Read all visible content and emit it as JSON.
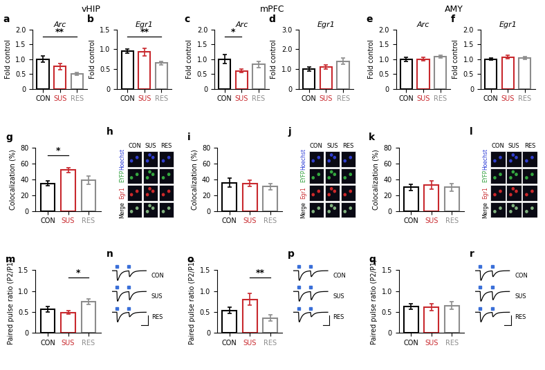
{
  "regions": [
    "vHIP",
    "mPFC",
    "AMY"
  ],
  "chart_data": [
    {
      "type": "bar",
      "panel": "a",
      "title": "Arc",
      "y_label": "Fold control",
      "categories": [
        "CON",
        "SUS",
        "RES"
      ],
      "values": [
        1.0,
        0.75,
        0.5
      ],
      "errors": [
        0.1,
        0.1,
        0.04
      ],
      "colors": [
        "#000000",
        "#c8282d",
        "#8c8c8c"
      ],
      "ylim": [
        0,
        2.0
      ],
      "yticks": [
        0,
        0.5,
        1.0,
        1.5,
        2.0
      ],
      "annotations": [
        {
          "text": "**",
          "between": [
            "CON",
            "RES"
          ]
        }
      ]
    },
    {
      "type": "bar",
      "panel": "b",
      "title": "Egr1",
      "y_label": "Fold control",
      "categories": [
        "CON",
        "SUS",
        "RES"
      ],
      "values": [
        0.95,
        0.93,
        0.65
      ],
      "errors": [
        0.05,
        0.1,
        0.05
      ],
      "colors": [
        "#000000",
        "#c8282d",
        "#8c8c8c"
      ],
      "ylim": [
        0,
        1.5
      ],
      "yticks": [
        0,
        0.5,
        1.0,
        1.5
      ],
      "annotations": [
        {
          "text": "**",
          "between": [
            "CON",
            "RES"
          ]
        }
      ]
    },
    {
      "type": "bar",
      "panel": "c",
      "title": "Arc",
      "y_label": "Fold control",
      "categories": [
        "CON",
        "SUS",
        "RES"
      ],
      "values": [
        1.0,
        0.6,
        0.82
      ],
      "errors": [
        0.15,
        0.06,
        0.1
      ],
      "colors": [
        "#000000",
        "#c8282d",
        "#8c8c8c"
      ],
      "ylim": [
        0,
        2.0
      ],
      "yticks": [
        0,
        0.5,
        1.0,
        1.5,
        2.0
      ],
      "annotations": [
        {
          "text": "*",
          "between": [
            "CON",
            "SUS"
          ]
        }
      ]
    },
    {
      "type": "bar",
      "panel": "d",
      "title": "Egr1",
      "y_label": "Fold control",
      "categories": [
        "CON",
        "SUS",
        "RES"
      ],
      "values": [
        1.0,
        1.1,
        1.4
      ],
      "errors": [
        0.1,
        0.1,
        0.15
      ],
      "colors": [
        "#000000",
        "#c8282d",
        "#8c8c8c"
      ],
      "ylim": [
        0,
        3.0
      ],
      "yticks": [
        0,
        1.0,
        2.0,
        3.0
      ],
      "annotations": []
    },
    {
      "type": "bar",
      "panel": "e",
      "title": "Arc",
      "y_label": "Fold control",
      "categories": [
        "CON",
        "SUS",
        "RES"
      ],
      "values": [
        1.0,
        1.0,
        1.08
      ],
      "errors": [
        0.07,
        0.06,
        0.05
      ],
      "colors": [
        "#000000",
        "#c8282d",
        "#8c8c8c"
      ],
      "ylim": [
        0,
        2.0
      ],
      "yticks": [
        0,
        0.5,
        1.0,
        1.5,
        2.0
      ],
      "annotations": []
    },
    {
      "type": "bar",
      "panel": "f",
      "title": "Egr1",
      "y_label": "Fold control",
      "categories": [
        "CON",
        "SUS",
        "RES"
      ],
      "values": [
        1.0,
        1.07,
        1.04
      ],
      "errors": [
        0.04,
        0.06,
        0.05
      ],
      "colors": [
        "#000000",
        "#c8282d",
        "#8c8c8c"
      ],
      "ylim": [
        0,
        2.0
      ],
      "yticks": [
        0,
        0.5,
        1.0,
        1.5,
        2.0
      ],
      "annotations": []
    },
    {
      "type": "bar",
      "panel": "g",
      "y_label": "Colocalization (%)",
      "categories": [
        "CON",
        "SUS",
        "RES"
      ],
      "values": [
        35,
        52,
        39
      ],
      "errors": [
        3,
        3,
        5
      ],
      "colors": [
        "#000000",
        "#c8282d",
        "#8c8c8c"
      ],
      "ylim": [
        0,
        80
      ],
      "yticks": [
        0,
        20,
        40,
        60,
        80
      ],
      "annotations": [
        {
          "text": "*",
          "between": [
            "CON",
            "SUS"
          ]
        }
      ]
    },
    {
      "type": "bar",
      "panel": "i",
      "y_label": "Colocalization (%)",
      "categories": [
        "CON",
        "SUS",
        "RES"
      ],
      "values": [
        36,
        35,
        31
      ],
      "errors": [
        6,
        4,
        4
      ],
      "colors": [
        "#000000",
        "#c8282d",
        "#8c8c8c"
      ],
      "ylim": [
        0,
        80
      ],
      "yticks": [
        0,
        20,
        40,
        60,
        80
      ],
      "annotations": []
    },
    {
      "type": "bar",
      "panel": "k",
      "y_label": "Colocalization (%)",
      "categories": [
        "CON",
        "SUS",
        "RES"
      ],
      "values": [
        30,
        33,
        30
      ],
      "errors": [
        4,
        5,
        5
      ],
      "colors": [
        "#000000",
        "#c8282d",
        "#8c8c8c"
      ],
      "ylim": [
        0,
        80
      ],
      "yticks": [
        0,
        20,
        40,
        60,
        80
      ],
      "annotations": []
    },
    {
      "type": "bar",
      "panel": "m",
      "y_label": "Paired pulse ratio (P2/P1)",
      "categories": [
        "CON",
        "SUS",
        "RES"
      ],
      "values": [
        0.57,
        0.49,
        0.75
      ],
      "errors": [
        0.07,
        0.04,
        0.07
      ],
      "colors": [
        "#000000",
        "#c8282d",
        "#8c8c8c"
      ],
      "ylim": [
        0,
        1.5
      ],
      "yticks": [
        0,
        0.5,
        1.0,
        1.5
      ],
      "annotations": [
        {
          "text": "*",
          "between": [
            "SUS",
            "RES"
          ]
        }
      ]
    },
    {
      "type": "bar",
      "panel": "o",
      "y_label": "Paired pulse ratio (P2/P1)",
      "categories": [
        "CON",
        "SUS",
        "RES"
      ],
      "values": [
        0.54,
        0.8,
        0.36
      ],
      "errors": [
        0.08,
        0.14,
        0.07
      ],
      "colors": [
        "#000000",
        "#c8282d",
        "#8c8c8c"
      ],
      "ylim": [
        0,
        1.5
      ],
      "yticks": [
        0,
        0.5,
        1.0,
        1.5
      ],
      "annotations": [
        {
          "text": "**",
          "between": [
            "SUS",
            "RES"
          ]
        }
      ]
    },
    {
      "type": "bar",
      "panel": "q",
      "y_label": "Paired pulse ratio (P2/P1)",
      "categories": [
        "CON",
        "SUS",
        "RES"
      ],
      "values": [
        0.63,
        0.62,
        0.65
      ],
      "errors": [
        0.07,
        0.08,
        0.09
      ],
      "colors": [
        "#000000",
        "#c8282d",
        "#8c8c8c"
      ],
      "ylim": [
        0,
        1.5
      ],
      "yticks": [
        0,
        0.5,
        1.0,
        1.5
      ],
      "annotations": []
    }
  ],
  "images": [
    {
      "panel": "h",
      "columns": [
        "CON",
        "SUS",
        "RES"
      ],
      "rows": [
        "Hoechst",
        "EYFP",
        "Egr1",
        "Merge"
      ]
    },
    {
      "panel": "j",
      "columns": [
        "CON",
        "SUS",
        "RES"
      ],
      "rows": [
        "Hoechst",
        "EYFP",
        "Egr1",
        "Merge"
      ]
    },
    {
      "panel": "l",
      "columns": [
        "CON",
        "SUS",
        "RES"
      ],
      "rows": [
        "Hoechst",
        "EYFP",
        "Egr1",
        "Merge"
      ]
    }
  ],
  "traces": [
    {
      "panel": "n",
      "labels": [
        "CON",
        "SUS",
        "RES"
      ]
    },
    {
      "panel": "p",
      "labels": [
        "CON",
        "SUS",
        "RES"
      ]
    },
    {
      "panel": "r",
      "labels": [
        "CON",
        "SUS",
        "RES"
      ]
    }
  ]
}
